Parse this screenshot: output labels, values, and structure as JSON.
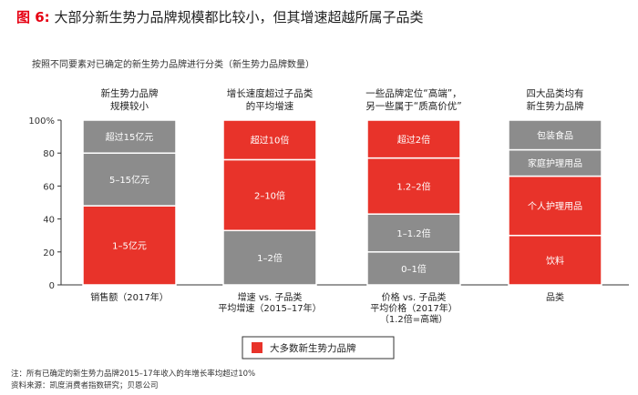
{
  "header": {
    "fig_label": "图 6:",
    "title": "大部分新生势力品牌规模都比较小，但其增速超越所属子品类",
    "subtitle": "按照不同要素对已确定的新生势力品牌进行分类（新生势力品牌数量）"
  },
  "chart_data": {
    "type": "bar",
    "stacked": true,
    "ylim": [
      0,
      100
    ],
    "yticks": [
      "0",
      "20",
      "40",
      "60",
      "80",
      "100%"
    ],
    "legend": {
      "label": "大多数新生势力品牌",
      "color": "#e8332a",
      "placement": "bottom"
    },
    "colors": {
      "highlight": "#e8332a",
      "other": "#8c8c8c"
    },
    "bars": [
      {
        "header": [
          "新生势力品牌",
          "规模较小"
        ],
        "xlabel": [
          "销售额（2017年）"
        ],
        "segments": [
          {
            "label": "1–5亿元",
            "value": 48,
            "highlight": true
          },
          {
            "label": "5–15亿元",
            "value": 32,
            "highlight": false
          },
          {
            "label": "超过15亿元",
            "value": 20,
            "highlight": false
          }
        ]
      },
      {
        "header": [
          "增长速度超过子品类",
          "的平均增速"
        ],
        "xlabel": [
          "增速 vs. 子品类",
          "平均增速（2015–17年）"
        ],
        "segments": [
          {
            "label": "1–2倍",
            "value": 33,
            "highlight": false
          },
          {
            "label": "2–10倍",
            "value": 43,
            "highlight": true
          },
          {
            "label": "超过10倍",
            "value": 24,
            "highlight": true
          }
        ]
      },
      {
        "header": [
          "一些品牌定位“高端”，",
          "另一些属于“质高价优”"
        ],
        "xlabel": [
          "价格 vs. 子品类",
          "平均价格（2017年）",
          "（1.2倍=高端）"
        ],
        "segments": [
          {
            "label": "0–1倍",
            "value": 20,
            "highlight": false
          },
          {
            "label": "1–1.2倍",
            "value": 23,
            "highlight": false
          },
          {
            "label": "1.2–2倍",
            "value": 34,
            "highlight": true
          },
          {
            "label": "超过2倍",
            "value": 23,
            "highlight": true
          }
        ]
      },
      {
        "header": [
          "四大品类均有",
          "新生势力品牌"
        ],
        "xlabel": [
          "品类"
        ],
        "segments": [
          {
            "label": "饮料",
            "value": 30,
            "highlight": true
          },
          {
            "label": "个人护理用品",
            "value": 36,
            "highlight": true
          },
          {
            "label": "家庭护理用品",
            "value": 16,
            "highlight": false
          },
          {
            "label": "包装食品",
            "value": 18,
            "highlight": false
          }
        ]
      }
    ]
  },
  "footer": {
    "note": "注：所有已确定的新生势力品牌2015–17年收入的年增长率均超过10%",
    "source": "资料来源：凯度消费者指数研究；贝恩公司"
  }
}
